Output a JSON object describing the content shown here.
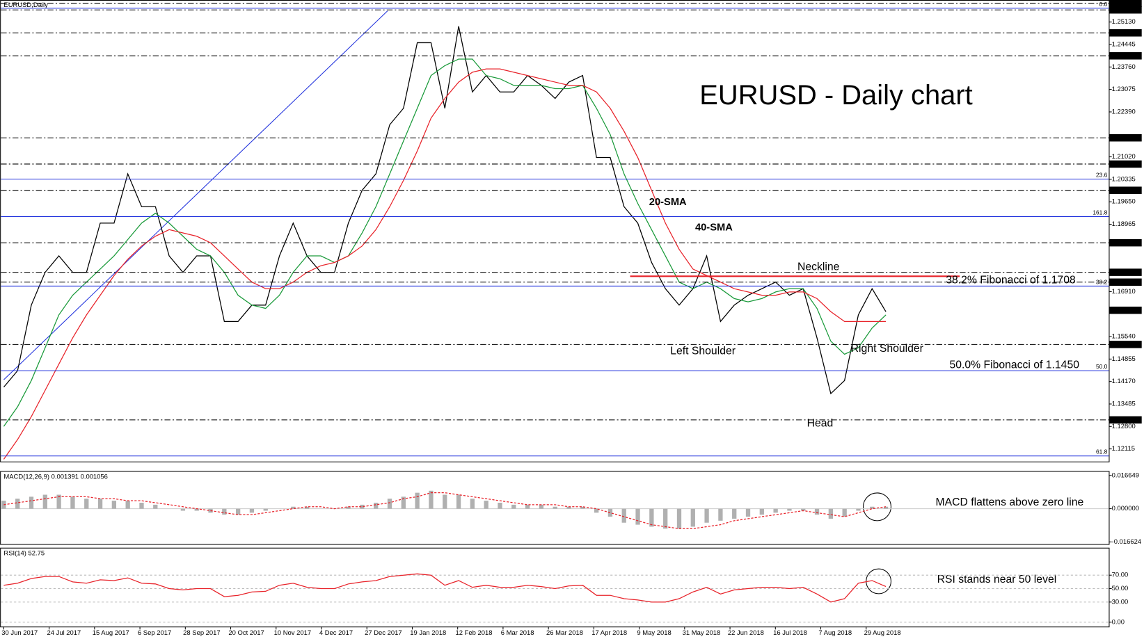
{
  "chart_data": [
    {
      "type": "line",
      "title": "EURUSD - Daily chart",
      "symbol": "EURUSD,Daily",
      "ylim": [
        1.1173,
        1.2578
      ],
      "yticks": [
        {
          "value": 1.2513,
          "label": "1.25130"
        },
        {
          "value": 1.24445,
          "label": "1.24445"
        },
        {
          "value": 1.2376,
          "label": "1.23760"
        },
        {
          "value": 1.23075,
          "label": "1.23075"
        },
        {
          "value": 1.2239,
          "label": "1.22390"
        },
        {
          "value": 1.2102,
          "label": "1.21020"
        },
        {
          "value": 1.20335,
          "label": "1.20335"
        },
        {
          "value": 1.1965,
          "label": "1.19650"
        },
        {
          "value": 1.18965,
          "label": "1.18965"
        },
        {
          "value": 1.1691,
          "label": "1.16910"
        },
        {
          "value": 1.1554,
          "label": "1.15540"
        },
        {
          "value": 1.14855,
          "label": "1.14855"
        },
        {
          "value": 1.1417,
          "label": "1.14170"
        },
        {
          "value": 1.13485,
          "label": "1.13485"
        },
        {
          "value": 1.128,
          "label": "1.12800"
        },
        {
          "value": 1.12115,
          "label": "1.12115"
        }
      ],
      "levels": [
        {
          "value": 1.257,
          "label": "1.25700"
        },
        {
          "value": 1.255,
          "label": "1.25500"
        },
        {
          "value": 1.248,
          "label": "1.24800"
        },
        {
          "value": 1.241,
          "label": "1.24100"
        },
        {
          "value": 1.216,
          "label": "1.21600"
        },
        {
          "value": 1.208,
          "label": "1.20800"
        },
        {
          "value": 1.2,
          "label": "1.20000"
        },
        {
          "value": 1.184,
          "label": "1.18400"
        },
        {
          "value": 1.175,
          "label": "1.17500"
        },
        {
          "value": 1.172,
          "label": "1.17200"
        },
        {
          "value": 1.153,
          "label": "1.15300"
        },
        {
          "value": 1.13,
          "label": "1.13000"
        }
      ],
      "price_label": {
        "value": 1.16342,
        "label": "1.16342"
      },
      "fib_levels": [
        {
          "value": 1.2555,
          "label": "0.0"
        },
        {
          "value": 1.2034,
          "label": "23.6"
        },
        {
          "value": 1.192,
          "label": "161.8"
        },
        {
          "value": 1.1708,
          "label": "38.2"
        },
        {
          "value": 1.145,
          "label": "50.0"
        },
        {
          "value": 1.119,
          "label": "61.8"
        }
      ],
      "neckline": 1.1738,
      "xticks": [
        "30 Jun 2017",
        "24 Jul 2017",
        "15 Aug 2017",
        "6 Sep 2017",
        "28 Sep 2017",
        "20 Oct 2017",
        "10 Nov 2017",
        "4 Dec 2017",
        "27 Dec 2017",
        "19 Jan 2018",
        "12 Feb 2018",
        "6 Mar 2018",
        "26 Mar 2018",
        "17 Apr 2018",
        "9 May 2018",
        "31 May 2018",
        "22 Jun 2018",
        "16 Jul 2018",
        "7 Aug 2018",
        "29 Aug 2018"
      ],
      "annotations": [
        "20-SMA",
        "40-SMA",
        "Neckline",
        "38.2% Fibonacci of 1.1708",
        "Left Shoulder",
        "Right Shoulder",
        "50.0% Fibonacci of 1.1450",
        "Head"
      ],
      "series": [
        {
          "name": "EURUSD",
          "color": "#000000",
          "values": [
            1.14,
            1.145,
            1.165,
            1.175,
            1.18,
            1.175,
            1.175,
            1.19,
            1.19,
            1.205,
            1.195,
            1.195,
            1.18,
            1.175,
            1.18,
            1.18,
            1.16,
            1.16,
            1.165,
            1.165,
            1.18,
            1.19,
            1.18,
            1.175,
            1.175,
            1.19,
            1.2,
            1.205,
            1.22,
            1.225,
            1.245,
            1.245,
            1.225,
            1.25,
            1.23,
            1.235,
            1.23,
            1.23,
            1.235,
            1.232,
            1.228,
            1.233,
            1.235,
            1.21,
            1.21,
            1.195,
            1.19,
            1.178,
            1.17,
            1.165,
            1.17,
            1.18,
            1.16,
            1.165,
            1.168,
            1.17,
            1.172,
            1.168,
            1.17,
            1.155,
            1.138,
            1.142,
            1.162,
            1.17,
            1.163
          ]
        },
        {
          "name": "20-SMA",
          "color": "#1a9a3a",
          "values": [
            1.128,
            1.134,
            1.142,
            1.152,
            1.162,
            1.168,
            1.172,
            1.176,
            1.18,
            1.185,
            1.19,
            1.193,
            1.19,
            1.186,
            1.182,
            1.18,
            1.175,
            1.168,
            1.165,
            1.164,
            1.168,
            1.175,
            1.18,
            1.18,
            1.178,
            1.18,
            1.187,
            1.195,
            1.205,
            1.215,
            1.225,
            1.235,
            1.238,
            1.24,
            1.24,
            1.235,
            1.234,
            1.232,
            1.232,
            1.232,
            1.231,
            1.231,
            1.232,
            1.225,
            1.217,
            1.205,
            1.196,
            1.188,
            1.18,
            1.172,
            1.17,
            1.172,
            1.17,
            1.167,
            1.166,
            1.167,
            1.169,
            1.17,
            1.17,
            1.164,
            1.154,
            1.15,
            1.152,
            1.158,
            1.162
          ]
        },
        {
          "name": "40-SMA",
          "color": "#e8232a",
          "values": [
            1.118,
            1.124,
            1.131,
            1.139,
            1.147,
            1.155,
            1.162,
            1.168,
            1.174,
            1.179,
            1.183,
            1.186,
            1.188,
            1.187,
            1.186,
            1.184,
            1.18,
            1.176,
            1.172,
            1.17,
            1.17,
            1.172,
            1.175,
            1.177,
            1.178,
            1.18,
            1.183,
            1.188,
            1.195,
            1.203,
            1.212,
            1.222,
            1.228,
            1.233,
            1.236,
            1.237,
            1.237,
            1.236,
            1.235,
            1.234,
            1.233,
            1.232,
            1.232,
            1.23,
            1.225,
            1.218,
            1.21,
            1.2,
            1.19,
            1.182,
            1.176,
            1.174,
            1.172,
            1.17,
            1.169,
            1.168,
            1.168,
            1.169,
            1.169,
            1.167,
            1.163,
            1.16,
            1.16,
            1.16,
            1.16
          ]
        }
      ]
    },
    {
      "type": "bar",
      "title": "MACD(12,26,9) 0.001391 0.001056",
      "annotation": "MACD flattens above zero line",
      "ylim": [
        -0.0177,
        0.0185
      ],
      "yticks": [
        {
          "value": 0.016649,
          "label": "0.016649"
        },
        {
          "value": 0,
          "label": "0.000000"
        },
        {
          "value": -0.016624,
          "label": "-0.016624"
        }
      ],
      "series": [
        {
          "name": "MACD",
          "type": "bar",
          "color": "#b0b0b0",
          "values": [
            0.004,
            0.005,
            0.006,
            0.007,
            0.007,
            0.006,
            0.005,
            0.005,
            0.004,
            0.004,
            0.003,
            0.002,
            0.0,
            -0.001,
            -0.001,
            -0.002,
            -0.003,
            -0.003,
            -0.002,
            -0.001,
            0.0,
            0.001,
            0.001,
            0.0,
            0.0,
            0.001,
            0.002,
            0.003,
            0.005,
            0.006,
            0.008,
            0.009,
            0.007,
            0.007,
            0.005,
            0.004,
            0.003,
            0.002,
            0.002,
            0.002,
            0.001,
            0.001,
            0.001,
            -0.002,
            -0.004,
            -0.007,
            -0.008,
            -0.009,
            -0.01,
            -0.01,
            -0.009,
            -0.007,
            -0.006,
            -0.005,
            -0.004,
            -0.003,
            -0.002,
            -0.001,
            -0.001,
            -0.003,
            -0.005,
            -0.004,
            -0.001,
            0.001,
            0.001
          ]
        },
        {
          "name": "Signal",
          "type": "line",
          "color": "#e8232a",
          "values": [
            0.002,
            0.003,
            0.004,
            0.005,
            0.006,
            0.006,
            0.006,
            0.005,
            0.005,
            0.004,
            0.004,
            0.003,
            0.002,
            0.001,
            0.0,
            -0.001,
            -0.002,
            -0.003,
            -0.003,
            -0.002,
            -0.001,
            0.0,
            0.001,
            0.001,
            0.0,
            0.001,
            0.001,
            0.002,
            0.003,
            0.005,
            0.006,
            0.008,
            0.008,
            0.007,
            0.006,
            0.005,
            0.004,
            0.003,
            0.002,
            0.002,
            0.002,
            0.001,
            0.001,
            0.0,
            -0.002,
            -0.004,
            -0.006,
            -0.008,
            -0.009,
            -0.01,
            -0.01,
            -0.009,
            -0.008,
            -0.006,
            -0.005,
            -0.004,
            -0.003,
            -0.002,
            -0.001,
            -0.002,
            -0.003,
            -0.004,
            -0.002,
            0.0,
            0.001
          ]
        }
      ]
    },
    {
      "type": "line",
      "title": "RSI(14) 52.75",
      "annotation": "RSI stands near 50 level",
      "ylim": [
        0,
        100
      ],
      "yticks": [
        {
          "value": 0,
          "label": "0.00"
        },
        {
          "value": 30,
          "label": "30.00"
        },
        {
          "value": 50,
          "label": "50.00"
        },
        {
          "value": 70,
          "label": "70.00"
        }
      ],
      "series": [
        {
          "name": "RSI",
          "color": "#e8232a",
          "values": [
            55,
            58,
            65,
            68,
            68,
            60,
            58,
            63,
            62,
            66,
            58,
            57,
            50,
            48,
            50,
            50,
            38,
            40,
            45,
            46,
            55,
            58,
            52,
            50,
            50,
            57,
            60,
            62,
            68,
            70,
            72,
            70,
            55,
            62,
            52,
            55,
            52,
            52,
            55,
            53,
            50,
            54,
            55,
            40,
            40,
            35,
            33,
            30,
            30,
            35,
            45,
            52,
            42,
            48,
            50,
            52,
            52,
            50,
            52,
            42,
            30,
            35,
            58,
            62,
            53
          ]
        }
      ]
    }
  ]
}
